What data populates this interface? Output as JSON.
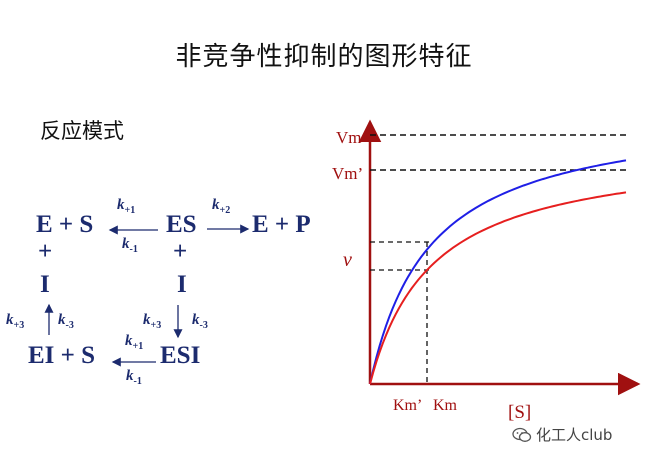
{
  "title": "非竞争性抑制的图形特征",
  "subtitle": "反应模式",
  "scheme": {
    "e_plus_s": "E + S",
    "es": "ES",
    "e_plus_p": "E + P",
    "plus": "+",
    "inhibitor": "I",
    "ei_plus_s": "EI + S",
    "esi": "ESI",
    "k_plus1": "k",
    "k_plus1_sub": "+1",
    "k_minus1": "k",
    "k_minus1_sub": "-1",
    "k_plus2": "k",
    "k_plus2_sub": "+2",
    "k_plus3": "k",
    "k_plus3_sub": "+3",
    "k_minus3": "k",
    "k_minus3_sub": "-3"
  },
  "chart_data": {
    "type": "line",
    "xlabel": "[S]",
    "ylabel": "v",
    "y_markers": [
      "Vm",
      "Vm’"
    ],
    "x_markers": [
      "Km’",
      "Km"
    ],
    "series": [
      {
        "color": "#1f1fe6",
        "asymptote_label": "Vm"
      },
      {
        "color": "#e61f1f",
        "asymptote_label": "Vm’"
      }
    ],
    "colors": {
      "axis": "#a01010",
      "label": "#a01010"
    }
  },
  "watermark": "化工人club"
}
